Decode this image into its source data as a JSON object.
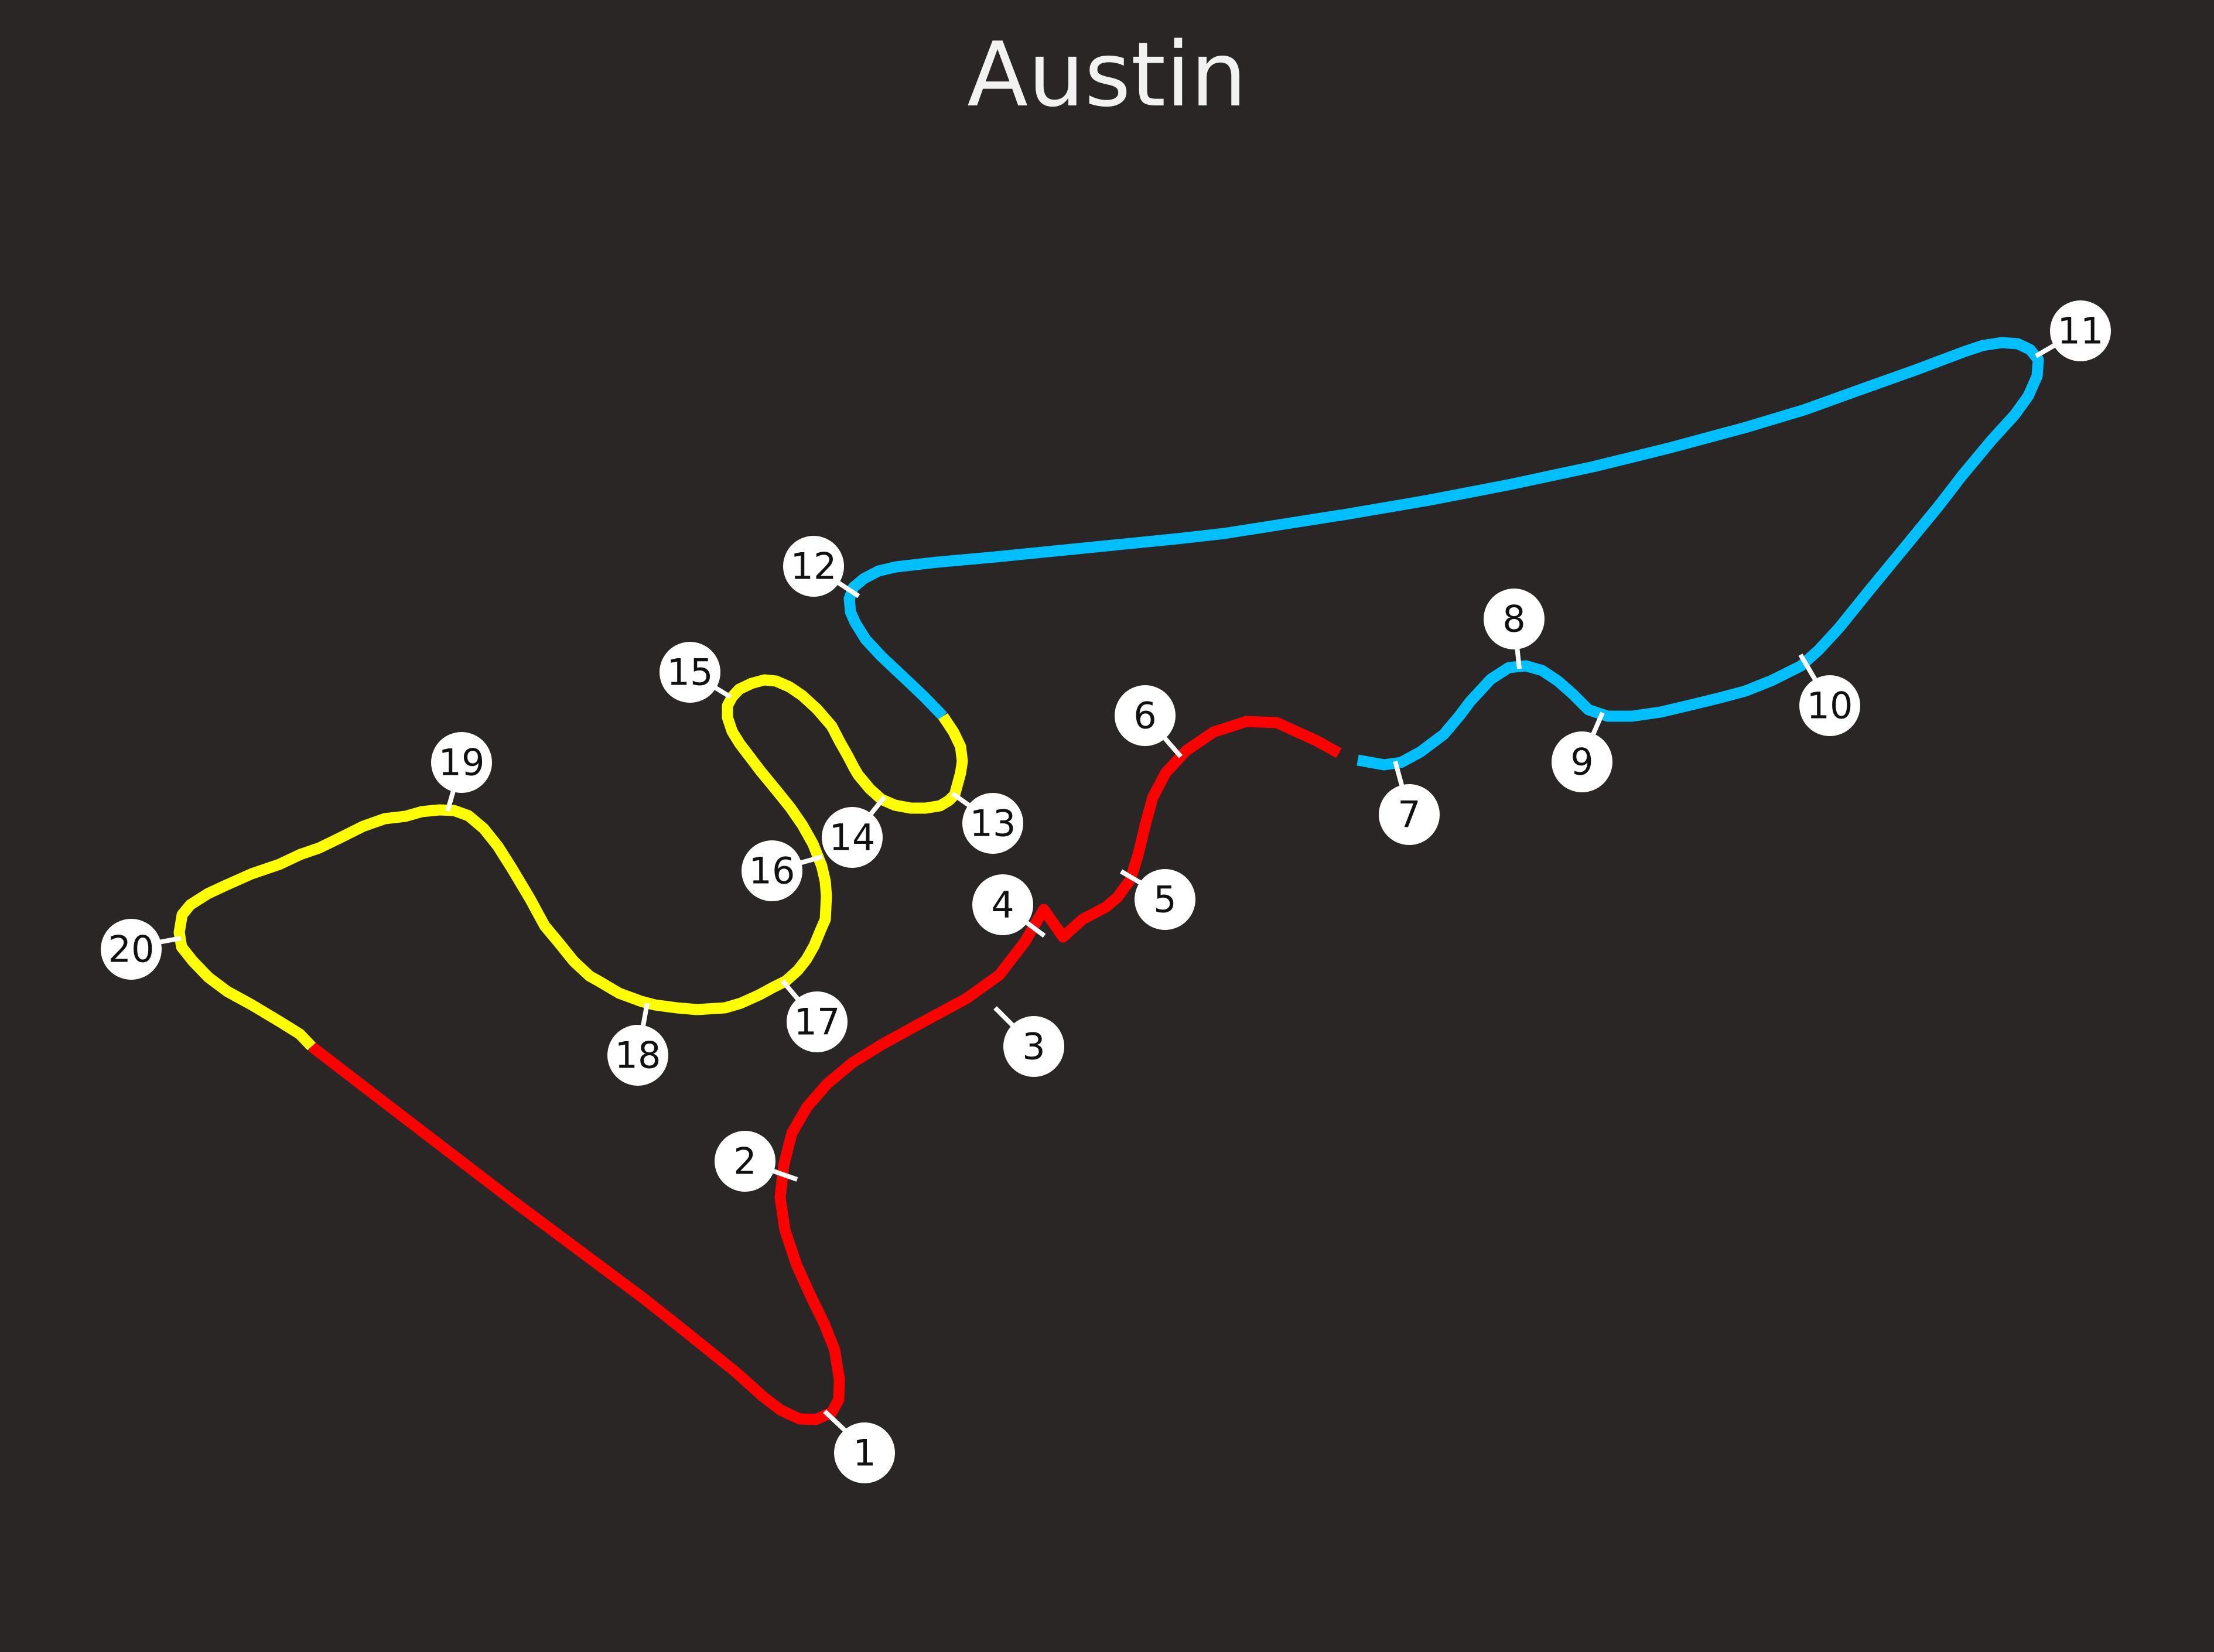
{
  "title": "Austin",
  "colors": {
    "background": "#292625",
    "sector1": "#ff0000",
    "sector2": "#00bfff",
    "sector3": "#ffff00",
    "marker_fill": "#ffffff",
    "marker_text": "#111111",
    "title_text": "#f2f2f2"
  },
  "sectors": [
    {
      "id": "sector-1",
      "color": "#ff0000"
    },
    {
      "id": "sector-2",
      "color": "#00bfff"
    },
    {
      "id": "sector-3",
      "color": "#ffff00"
    }
  ],
  "corners": [
    {
      "number": "1",
      "label": "1"
    },
    {
      "number": "2",
      "label": "2"
    },
    {
      "number": "3",
      "label": "3"
    },
    {
      "number": "4",
      "label": "4"
    },
    {
      "number": "5",
      "label": "5"
    },
    {
      "number": "6",
      "label": "6"
    },
    {
      "number": "7",
      "label": "7"
    },
    {
      "number": "8",
      "label": "8"
    },
    {
      "number": "9",
      "label": "9"
    },
    {
      "number": "10",
      "label": "10"
    },
    {
      "number": "11",
      "label": "11"
    },
    {
      "number": "12",
      "label": "12"
    },
    {
      "number": "13",
      "label": "13"
    },
    {
      "number": "14",
      "label": "14"
    },
    {
      "number": "15",
      "label": "15"
    },
    {
      "number": "16",
      "label": "16"
    },
    {
      "number": "17",
      "label": "17"
    },
    {
      "number": "18",
      "label": "18"
    },
    {
      "number": "19",
      "label": "19"
    },
    {
      "number": "20",
      "label": "20"
    }
  ]
}
